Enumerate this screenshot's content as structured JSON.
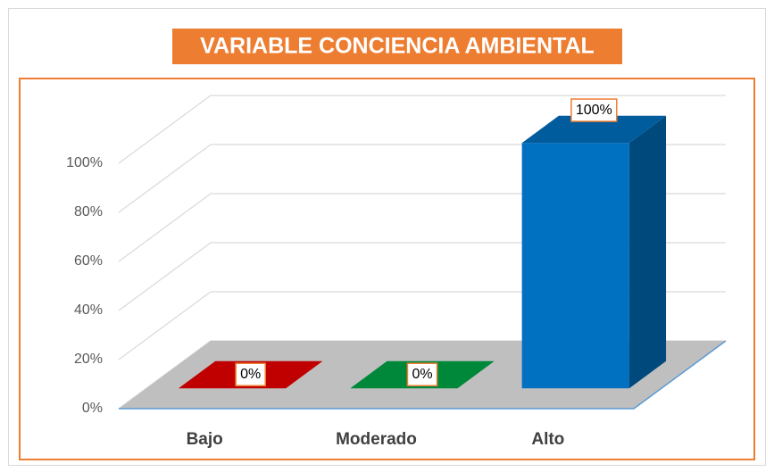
{
  "chart_data": {
    "type": "bar3d",
    "title": "VARIABLE CONCIENCIA AMBIENTAL",
    "categories": [
      "Bajo",
      "Moderado",
      "Alto"
    ],
    "values": [
      0,
      0,
      100
    ],
    "value_labels": [
      "0%",
      "0%",
      "100%"
    ],
    "colors": [
      "#c00000",
      "#00883a",
      "#0070c0"
    ],
    "ylim": [
      0,
      100
    ],
    "yticks": [
      {
        "value": 0,
        "label": "0%"
      },
      {
        "value": 20,
        "label": "20%"
      },
      {
        "value": 40,
        "label": "40%"
      },
      {
        "value": 60,
        "label": "60%"
      },
      {
        "value": 80,
        "label": "80%"
      },
      {
        "value": 100,
        "label": "100%"
      }
    ],
    "grid": true
  }
}
